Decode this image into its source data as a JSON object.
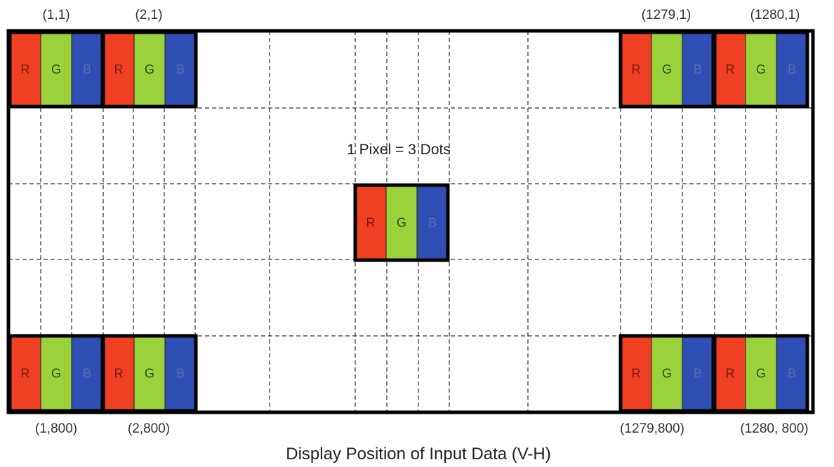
{
  "caption": "Display Position of Input Data (V-H)",
  "note": "1 Pixel = 3 Dots",
  "dot_labels": {
    "red": "R",
    "green": "G",
    "blue": "B"
  },
  "colors": {
    "red": "#ef4023",
    "green": "#9bd23c",
    "blue": "#2f4fb5",
    "red_letter": "#7a1a0a",
    "green_letter": "#2c4a10",
    "blue_letter": "#5d6fb0",
    "grid": "#000000"
  },
  "pixels": {
    "top_left_1": "(1,1)",
    "top_left_2": "(2,1)",
    "top_right_1": "(1279,1)",
    "top_right_2": "(1280,1)",
    "bottom_left_1": "(1,800)",
    "bottom_left_2": "(2,800)",
    "bottom_right_1": "(1279,800)",
    "bottom_right_2": "(1280, 800)"
  }
}
